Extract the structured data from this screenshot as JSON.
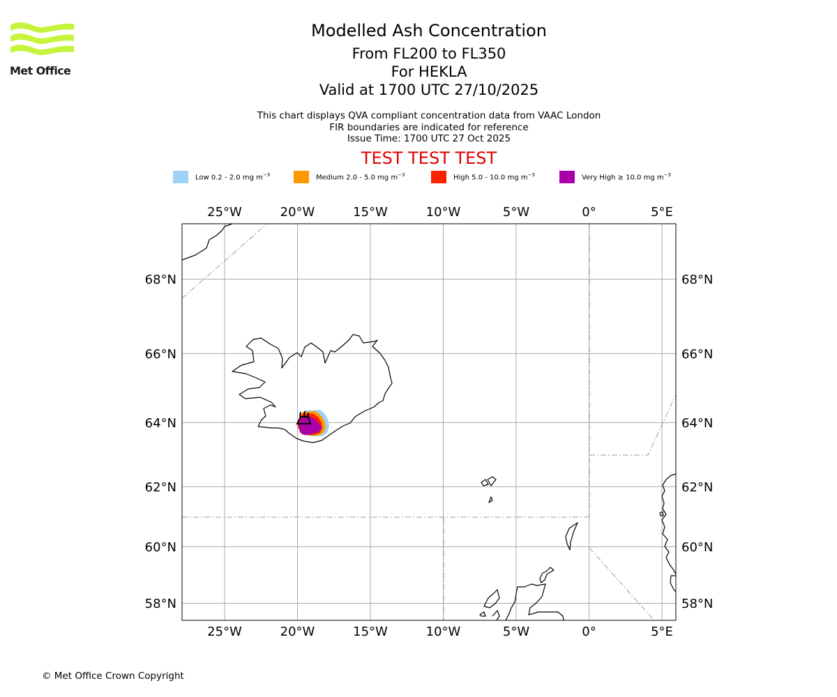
{
  "header": {
    "logo_text": "Met Office",
    "title": "Modelled Ash Concentration",
    "subtitle_lines": [
      "From FL200 to FL350",
      "For HEKLA",
      "Valid at 1700 UTC 27/10/2025"
    ],
    "info_lines": [
      "This chart displays QVA compliant concentration data from VAAC London",
      "FIR boundaries are indicated for reference",
      "Issue Time: 1700 UTC 27 Oct 2025"
    ],
    "test_banner": "TEST TEST TEST"
  },
  "legend": [
    {
      "label": "Low 0.2 - 2.0 mg m",
      "unit_exp": "−3",
      "color": "#a0d2f8"
    },
    {
      "label": "Medium 2.0 - 5.0 mg m",
      "unit_exp": "−3",
      "color": "#ff9900"
    },
    {
      "label": "High 5.0 - 10.0 mg m",
      "unit_exp": "−3",
      "color": "#ff2200"
    },
    {
      "label": "Very High  ≥  10.0 mg m",
      "unit_exp": "−3",
      "color": "#aa00aa"
    }
  ],
  "map": {
    "lon_ticks": [
      {
        "lon": -25,
        "label": "25°W"
      },
      {
        "lon": -20,
        "label": "20°W"
      },
      {
        "lon": -15,
        "label": "15°W"
      },
      {
        "lon": -10,
        "label": "10°W"
      },
      {
        "lon": -5,
        "label": "5°W"
      },
      {
        "lon": 0,
        "label": "0°"
      },
      {
        "lon": 5,
        "label": "5°E"
      }
    ],
    "lat_ticks": [
      {
        "lat": 68,
        "label": "68°N"
      },
      {
        "lat": 66,
        "label": "66°N"
      },
      {
        "lat": 64,
        "label": "64°N"
      },
      {
        "lat": 62,
        "label": "62°N"
      },
      {
        "lat": 60,
        "label": "60°N"
      },
      {
        "lat": 58,
        "label": "58°N"
      }
    ],
    "volcano": "HEKLA",
    "colors": {
      "coast": "#000000",
      "grid": "#aaaaaa",
      "fir": "#999999"
    }
  },
  "footer": {
    "copyright": "© Met Office Crown Copyright"
  }
}
